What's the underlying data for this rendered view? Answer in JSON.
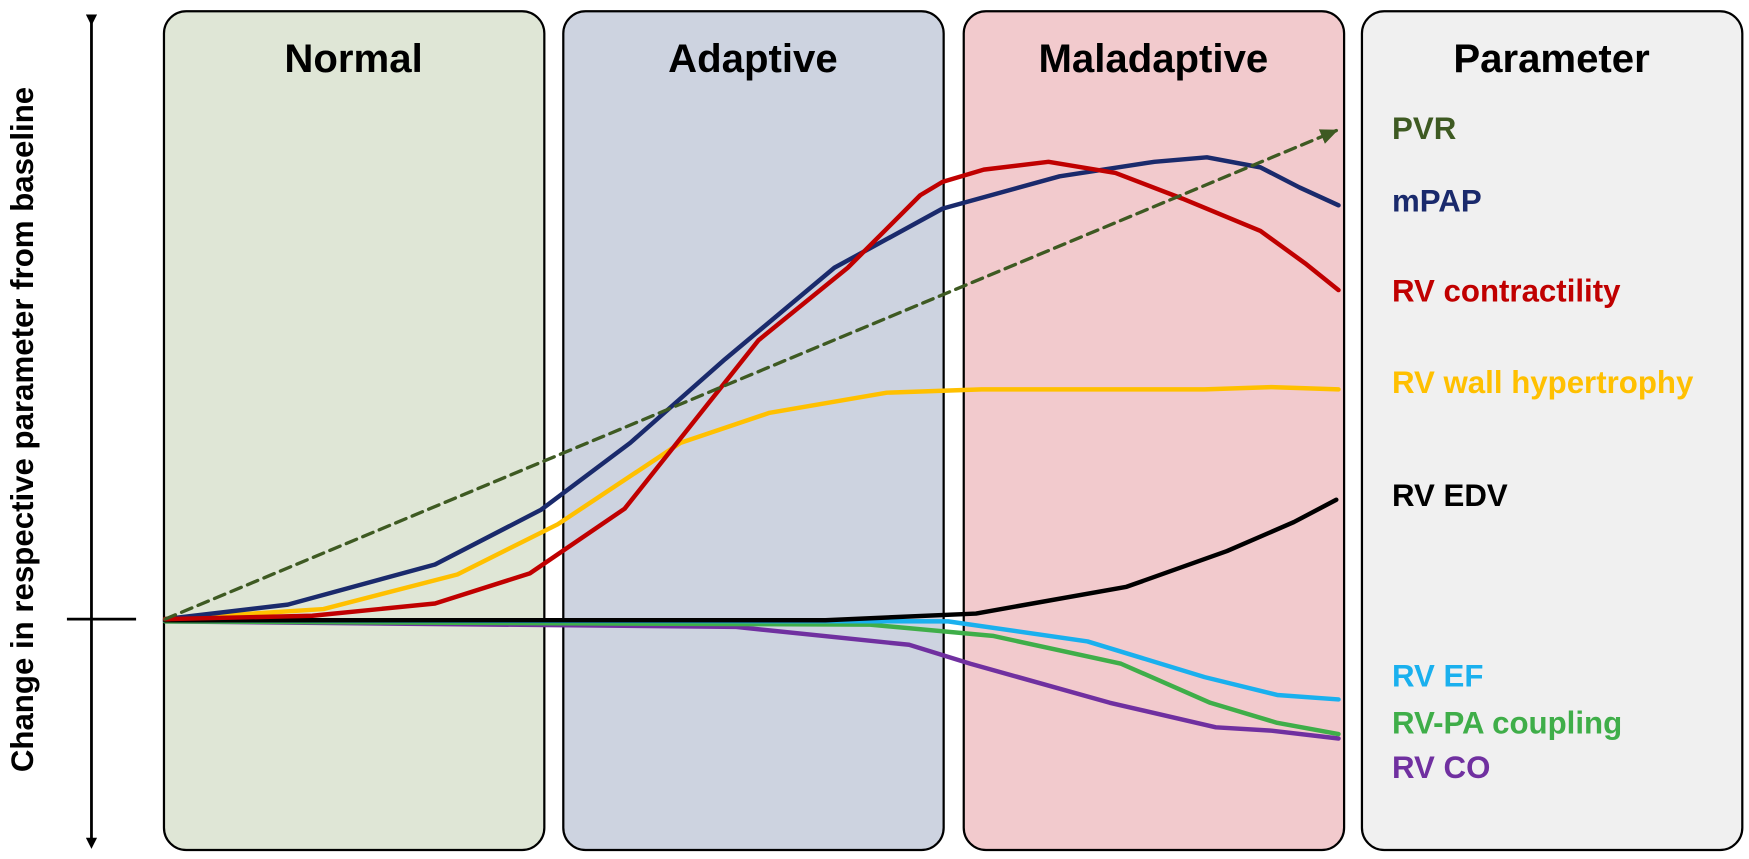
{
  "y_axis_label": "Change in respective parameter from baseline",
  "phases": [
    {
      "label": "Normal",
      "color": "#dfe6d6"
    },
    {
      "label": "Adaptive",
      "color": "#cdd3e0"
    },
    {
      "label": "Maladaptive",
      "color": "#f2cacd"
    }
  ],
  "parameter_panel": {
    "title": "Parameter",
    "color": "#f0f0f0",
    "items": [
      {
        "label": "PVR",
        "color": "#3e5a22"
      },
      {
        "label": "mPAP",
        "color": "#1a2a6c"
      },
      {
        "label": "RV contractility",
        "color": "#c00000"
      },
      {
        "label": "RV wall hypertrophy",
        "color": "#ffc000"
      },
      {
        "label": "RV EDV",
        "color": "#000000"
      },
      {
        "label": "RV EF",
        "color": "#1ab0ee"
      },
      {
        "label": "RV-PA coupling",
        "color": "#3fae49"
      },
      {
        "label": "RV CO",
        "color": "#7030a0"
      }
    ]
  }
}
